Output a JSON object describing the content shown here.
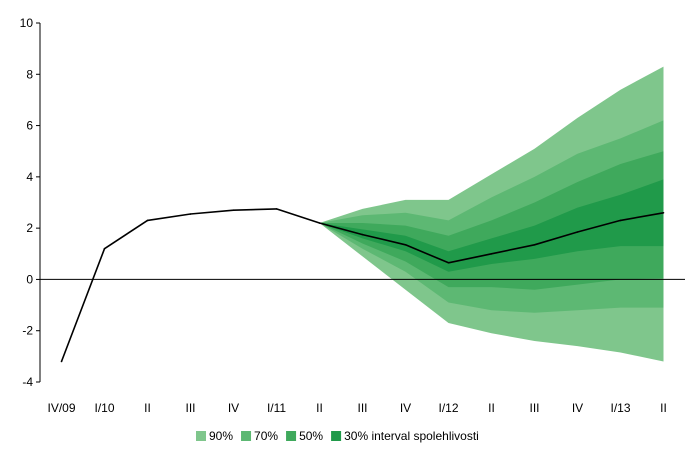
{
  "chart_data": {
    "type": "area",
    "title": "",
    "xlabel": "",
    "ylabel": "",
    "categories": [
      "IV/09",
      "I/10",
      "II",
      "III",
      "IV",
      "I/11",
      "II",
      "III",
      "IV",
      "I/12",
      "II",
      "III",
      "IV",
      "I/13",
      "II"
    ],
    "ylim": [
      -4,
      10
    ],
    "yticks": [
      -4,
      -2,
      0,
      2,
      4,
      6,
      8,
      10
    ],
    "grid": false,
    "legend_position": "bottom",
    "series": [
      {
        "values": [
          -3.2,
          1.2,
          2.3,
          2.55,
          2.7,
          2.75,
          2.2,
          1.75,
          1.35,
          0.65,
          1.0,
          1.35,
          1.85,
          2.3,
          2.6
        ]
      }
    ],
    "fan_start_index": 6,
    "fan_bands": [
      {
        "name": "90%",
        "color": "#7fc68c",
        "lower": [
          2.2,
          0.9,
          -0.4,
          -1.7,
          -2.1,
          -2.4,
          -2.6,
          -2.85,
          -3.2
        ],
        "upper": [
          2.2,
          2.75,
          3.1,
          3.1,
          4.1,
          5.1,
          6.3,
          7.4,
          8.3
        ]
      },
      {
        "name": "70%",
        "color": "#5db873",
        "lower": [
          2.2,
          1.2,
          0.3,
          -0.9,
          -1.2,
          -1.3,
          -1.2,
          -1.1,
          -1.1
        ],
        "upper": [
          2.2,
          2.5,
          2.6,
          2.3,
          3.2,
          4.0,
          4.9,
          5.5,
          6.2
        ]
      },
      {
        "name": "50%",
        "color": "#3fa95c",
        "lower": [
          2.2,
          1.4,
          0.7,
          -0.3,
          -0.3,
          -0.4,
          -0.2,
          0.0,
          0.05
        ],
        "upper": [
          2.2,
          2.2,
          2.1,
          1.7,
          2.3,
          3.0,
          3.8,
          4.5,
          5.0
        ]
      },
      {
        "name": "30% interval spolehlivosti",
        "color": "#209a4a",
        "lower": [
          2.2,
          1.6,
          1.1,
          0.3,
          0.6,
          0.8,
          1.1,
          1.3,
          1.3
        ],
        "upper": [
          2.2,
          1.95,
          1.7,
          1.1,
          1.6,
          2.1,
          2.8,
          3.3,
          3.9
        ]
      }
    ]
  }
}
